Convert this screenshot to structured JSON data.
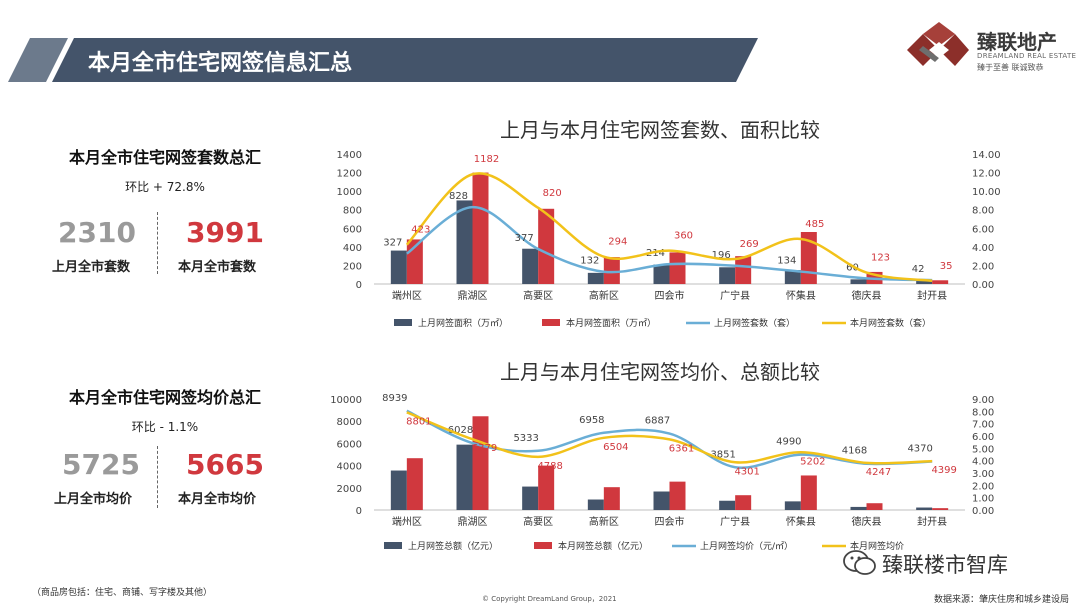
{
  "header": {
    "title": "本月全市住宅网签信息汇总"
  },
  "logo": {
    "name": "臻联地产",
    "english": "DREAMLAND REAL ESTATE",
    "slogan": "臻于至善 联诚致恭"
  },
  "panel_units": {
    "title": "本月全市住宅网签套数总汇",
    "ratio": "环比 + 72.8%",
    "prev_value": "2310",
    "prev_label": "上月全市套数",
    "curr_value": "3991",
    "curr_label": "本月全市套数"
  },
  "panel_price": {
    "title": "本月全市住宅网签均价总汇",
    "ratio": "环比  - 1.1%",
    "prev_value": "5725",
    "prev_label": "上月全市均价",
    "curr_value": "5665",
    "curr_label": "本月全市均价"
  },
  "colors": {
    "navy": "#44546a",
    "red": "#d0383e",
    "blue_line": "#6aaed6",
    "yellow_line": "#f2c21a",
    "title_bar": "#44546a"
  },
  "chart_data": [
    {
      "type": "bar",
      "title": "上月与本月住宅网签套数、面积比较",
      "categories": [
        "端州区",
        "鼎湖区",
        "高要区",
        "高新区",
        "四会市",
        "广宁县",
        "怀集县",
        "德庆县",
        "封开县"
      ],
      "left_axis": {
        "ylim": [
          0,
          1400
        ],
        "ticks": [
          "0",
          "200",
          "400",
          "600",
          "800",
          "1000",
          "1200",
          "1400"
        ]
      },
      "right_axis": {
        "ylim": [
          0,
          14
        ],
        "ticks": [
          "0.00",
          "2.00",
          "4.00",
          "6.00",
          "8.00",
          "10.00",
          "12.00",
          "14.00"
        ]
      },
      "series": [
        {
          "name": "上月网签面积（万㎡）",
          "kind": "bar",
          "axis": "right",
          "color": "#44546a",
          "values": [
            3.6,
            9.0,
            3.8,
            1.2,
            2.1,
            1.8,
            1.5,
            0.5,
            0.4
          ]
        },
        {
          "name": "本月网签面积（万㎡）",
          "kind": "bar",
          "axis": "right",
          "color": "#d0383e",
          "values": [
            4.8,
            12.0,
            8.1,
            2.9,
            3.4,
            3.0,
            5.6,
            1.3,
            0.4
          ]
        },
        {
          "name": "上月网签套数（套）",
          "kind": "line",
          "axis": "left",
          "color": "#6aaed6",
          "values": [
            327,
            828,
            377,
            132,
            214,
            196,
            134,
            60,
            42
          ],
          "labels": [
            "327",
            "828",
            "377",
            "132",
            "214",
            "196",
            "134",
            "60",
            "42"
          ]
        },
        {
          "name": "本月网签套数（套）",
          "kind": "line",
          "axis": "left",
          "color": "#f2c21a",
          "values": [
            423,
            1182,
            820,
            294,
            360,
            269,
            485,
            123,
            35
          ],
          "labels": [
            "423",
            "1182",
            "820",
            "294",
            "360",
            "269",
            "485",
            "123",
            "35"
          ]
        }
      ]
    },
    {
      "type": "bar",
      "title": "上月与本月住宅网签均价、总额比较",
      "categories": [
        "端州区",
        "鼎湖区",
        "高要区",
        "高新区",
        "四会市",
        "广宁县",
        "怀集县",
        "德庆县",
        "封开县"
      ],
      "left_axis": {
        "ylim": [
          0,
          10000
        ],
        "ticks": [
          "0",
          "2000",
          "4000",
          "6000",
          "8000",
          "10000"
        ]
      },
      "right_axis": {
        "ylim": [
          0,
          9
        ],
        "ticks": [
          "0.00",
          "1.00",
          "2.00",
          "3.00",
          "4.00",
          "5.00",
          "6.00",
          "7.00",
          "8.00",
          "9.00"
        ]
      },
      "series": [
        {
          "name": "上月网签总额（亿元）",
          "kind": "bar",
          "axis": "right",
          "color": "#44546a",
          "values": [
            3.2,
            5.3,
            1.9,
            0.85,
            1.5,
            0.75,
            0.7,
            0.25,
            0.2
          ]
        },
        {
          "name": "本月网签总额（亿元）",
          "kind": "bar",
          "axis": "right",
          "color": "#d0383e",
          "values": [
            4.2,
            7.6,
            3.6,
            1.85,
            2.3,
            1.2,
            2.8,
            0.55,
            0.15
          ]
        },
        {
          "name": "上月网签均价（元/㎡）",
          "kind": "line",
          "axis": "left",
          "color": "#6aaed6",
          "values": [
            8939,
            6028,
            5333,
            6958,
            6887,
            3851,
            4990,
            4168,
            4370
          ],
          "labels": [
            "8939",
            "6028",
            "5333",
            "6958",
            "6887",
            "3851",
            "4990",
            "4168",
            "4370"
          ]
        },
        {
          "name": "本月网签均价（元/㎡）",
          "kind": "line",
          "axis": "left",
          "color": "#f2c21a",
          "values": [
            8801,
            6379,
            4788,
            6504,
            6361,
            4301,
            5202,
            4247,
            4399
          ],
          "labels": [
            "8801",
            "6379",
            "4788",
            "6504",
            "6361",
            "4301",
            "5202",
            "4247",
            "4399"
          ]
        }
      ]
    }
  ],
  "legend_partial_last": "本月网签均价",
  "footer": {
    "note": "（商品房包括：住宅、商铺、写字楼及其他）",
    "copyright": "© Copyright  DreamLand Group，2021",
    "source": "数据来源：肇庆住房和城乡建设局"
  },
  "watermark": {
    "text": "臻联楼市智库"
  }
}
